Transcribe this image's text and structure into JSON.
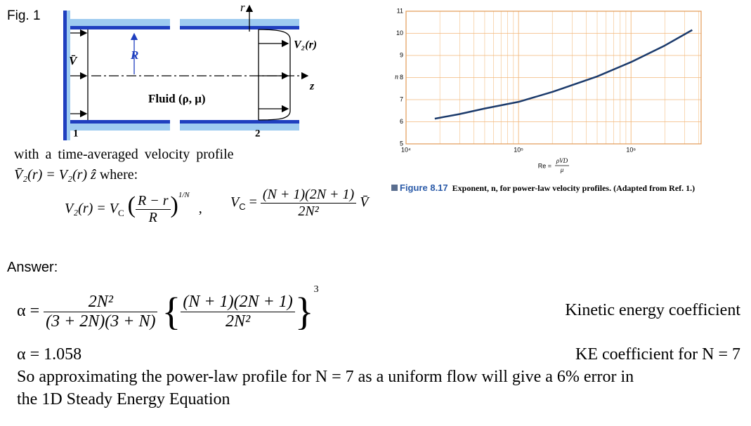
{
  "figure_label": "Fig. 1",
  "diagram": {
    "r": "r",
    "R": "R",
    "V_bar": "V̄",
    "V2": "V₂(r)",
    "z": "z",
    "fluid": "Fluid (ρ, μ)",
    "section_1": "1",
    "section_2": "2"
  },
  "intro": {
    "text": "with a time-averaged velocity profile",
    "vector_eq": "V̄₂(r) = V₂(r) ẑ",
    "where": "where:"
  },
  "eq_v2": {
    "lhs": "V₂(r) = V",
    "lhs_sub": "C",
    "num": "R − r",
    "den": "R",
    "exp": "1/N",
    "tail": ","
  },
  "eq_vc": {
    "lhs": "V",
    "lhs_sub": "C",
    "eq": "=",
    "num": "(N + 1)(2N + 1)",
    "den": "2N²",
    "tail": "V̄"
  },
  "chart_data": {
    "type": "line",
    "x": [
      18000,
      30000,
      50000,
      100000,
      200000,
      500000,
      1000000,
      2000000,
      3500000
    ],
    "values": [
      6.14,
      6.35,
      6.6,
      6.9,
      7.35,
      8.05,
      8.7,
      9.45,
      10.15
    ],
    "color": "#1b3a6b",
    "xscale": "log",
    "xlim": [
      10000,
      4200000
    ],
    "xticks": [
      {
        "value": 10000,
        "label": "10⁴"
      },
      {
        "value": 100000,
        "label": "10⁵"
      },
      {
        "value": 1000000,
        "label": "10⁶"
      }
    ],
    "ylim": [
      5,
      11
    ],
    "yticks": [
      5,
      6,
      7,
      8,
      9,
      10,
      11
    ],
    "grid": true,
    "ylabel": "n",
    "xlabel": {
      "lhs": "Re =",
      "num": "ρVD",
      "den": "μ"
    }
  },
  "caption": {
    "label": "Figure 8.17",
    "text": "Exponent, n, for power-law velocity profiles. (Adapted from Ref. 1.)"
  },
  "answer": {
    "heading": "Answer:",
    "alpha_eq": {
      "lhs": "α =",
      "num1": "2N²",
      "den1": "(3 + 2N)(3 + N)",
      "num2": "(N + 1)(2N + 1)",
      "den2": "2N²",
      "exp": "3"
    },
    "alpha_label": "Kinetic energy coefficient",
    "alpha_value": "α = 1.058",
    "value_label": "KE coefficient for N = 7",
    "conclusion_1": "So approximating the power-law profile for N = 7 as a uniform flow will give a 6% error in",
    "conclusion_2": "the 1D Steady Energy Equation"
  }
}
